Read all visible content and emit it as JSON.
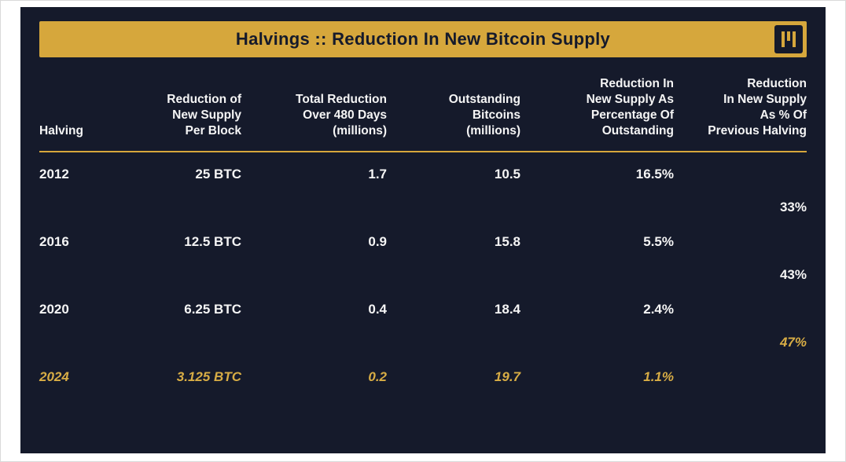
{
  "header": {
    "title": "Halvings :: Reduction In New Bitcoin Supply"
  },
  "colors": {
    "background": "#151a2b",
    "gold_bar": "#d6a73c",
    "gold_text": "#d8ad45",
    "text": "#f5f5f5"
  },
  "chart_data": {
    "type": "table",
    "title": "Halvings :: Reduction In New Bitcoin Supply",
    "columns": [
      "Halving",
      "Reduction of New Supply Per Block",
      "Total Reduction Over 480 Days (millions)",
      "Outstanding Bitcoins (millions)",
      "Reduction In New Supply As Percentage Of Outstanding",
      "Reduction In New Supply As % Of Previous Halving"
    ],
    "rows": [
      [
        "2012",
        "25 BTC",
        1.7,
        10.5,
        "16.5%",
        ""
      ],
      [
        "2016",
        "12.5 BTC",
        0.9,
        15.8,
        "5.5%",
        "33%"
      ],
      [
        "2020",
        "6.25 BTC",
        0.4,
        18.4,
        "2.4%",
        "43%"
      ],
      [
        "2024",
        "3.125 BTC",
        0.2,
        19.7,
        "1.1%",
        "47%"
      ]
    ],
    "notes": "Values in last column are printed offset between rows; 2024 row and 47% shown in gold italic"
  },
  "table": {
    "headers": {
      "halving": "Halving",
      "per_block": "Reduction of\nNew Supply\nPer Block",
      "total_reduction": "Total Reduction\nOver 480 Days\n(millions)",
      "outstanding": "Outstanding\nBitcoins\n(millions)",
      "pct_outstanding": "Reduction In\nNew Supply As\nPercentage Of\nOutstanding",
      "pct_previous": "Reduction\nIn New Supply\nAs % Of\nPrevious Halving"
    },
    "rows": [
      {
        "halving": "2012",
        "per_block": "25 BTC",
        "total_reduction": "1.7",
        "outstanding": "10.5",
        "pct_outstanding": "16.5%"
      },
      {
        "halving": "2016",
        "per_block": "12.5 BTC",
        "total_reduction": "0.9",
        "outstanding": "15.8",
        "pct_outstanding": "5.5%"
      },
      {
        "halving": "2020",
        "per_block": "6.25 BTC",
        "total_reduction": "0.4",
        "outstanding": "18.4",
        "pct_outstanding": "2.4%"
      },
      {
        "halving": "2024",
        "per_block": "3.125 BTC",
        "total_reduction": "0.2",
        "outstanding": "19.7",
        "pct_outstanding": "1.1%"
      }
    ],
    "changes": [
      "33%",
      "43%",
      "47%"
    ]
  }
}
